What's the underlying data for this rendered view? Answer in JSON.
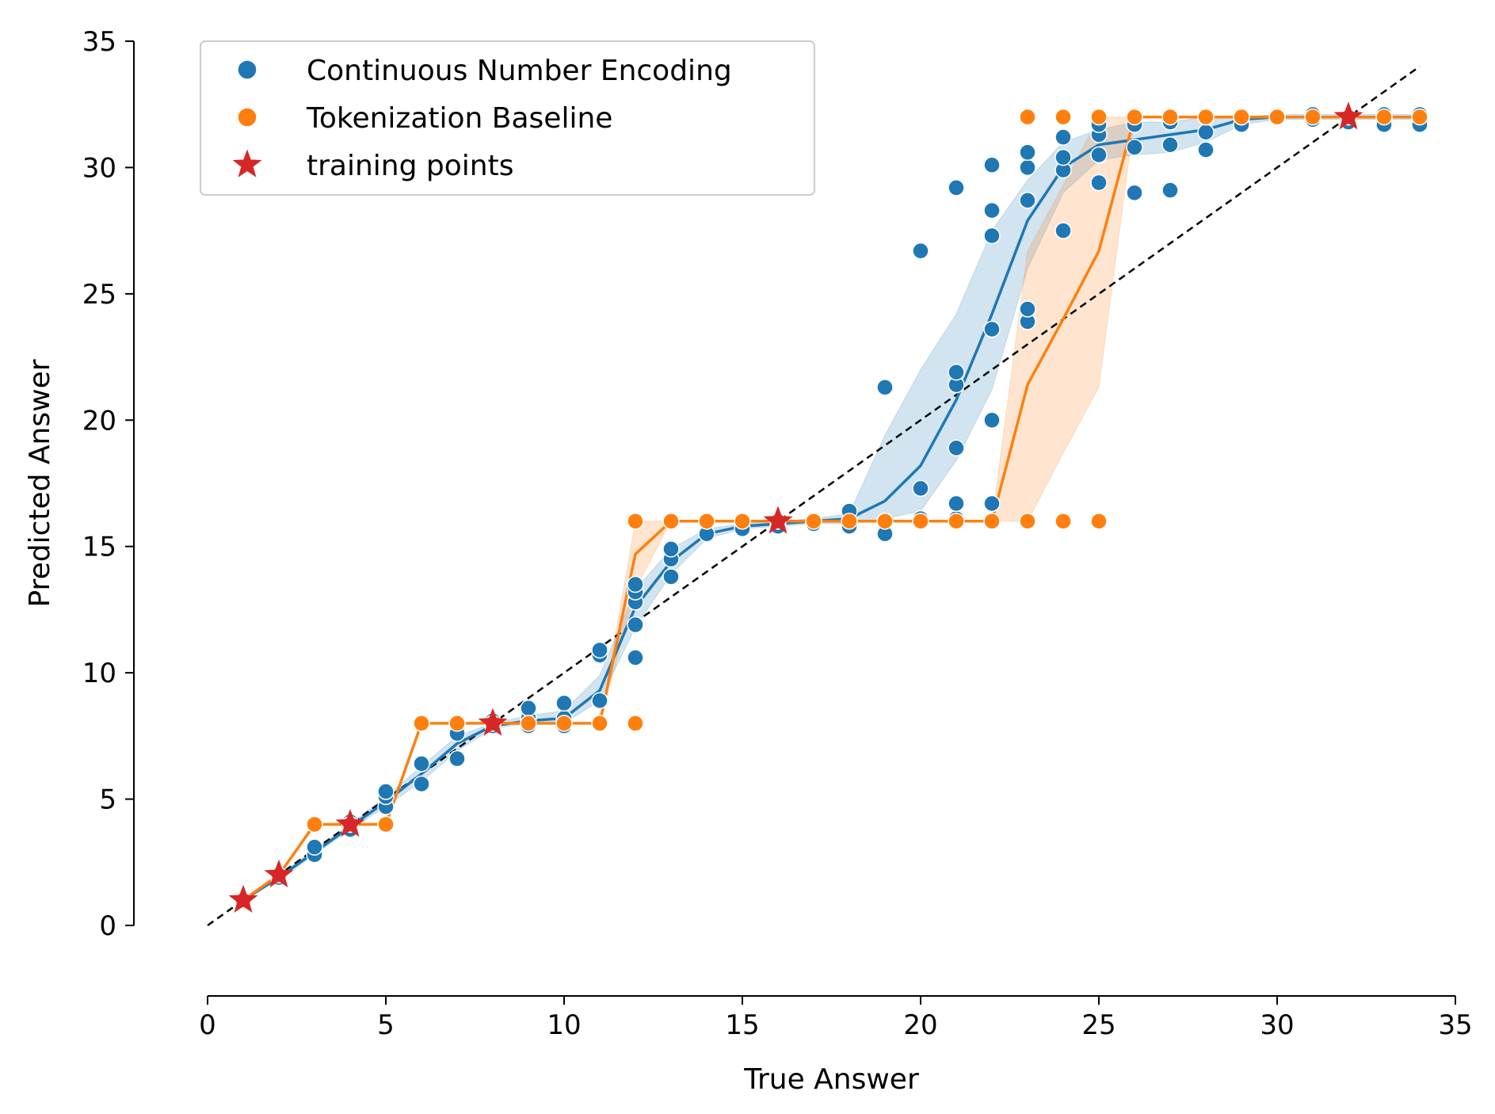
{
  "chart_data": {
    "type": "scatter",
    "title": "",
    "xlabel": "True Answer",
    "ylabel": "Predicted Answer",
    "xlim": [
      0,
      35
    ],
    "ylim": [
      0,
      35
    ],
    "xticks": [
      0,
      5,
      10,
      15,
      20,
      25,
      30,
      35
    ],
    "yticks": [
      0,
      5,
      10,
      15,
      20,
      25,
      30,
      35
    ],
    "grid": false,
    "legend_position": "top-left",
    "reference_line": {
      "style": "dashed",
      "color": "#000000",
      "x": [
        0,
        34
      ],
      "y": [
        0,
        34
      ]
    },
    "series": [
      {
        "name": "Continuous Number Encoding",
        "color": "#1f77b4",
        "points": [
          [
            1,
            1.0
          ],
          [
            2,
            1.9
          ],
          [
            3,
            2.8
          ],
          [
            3,
            3.1
          ],
          [
            4,
            3.8
          ],
          [
            4,
            4.1
          ],
          [
            5,
            4.7
          ],
          [
            5,
            5.1
          ],
          [
            5,
            5.3
          ],
          [
            6,
            5.6
          ],
          [
            6,
            6.4
          ],
          [
            7,
            6.6
          ],
          [
            7,
            7.6
          ],
          [
            8,
            7.9
          ],
          [
            8,
            8.1
          ],
          [
            9,
            7.9
          ],
          [
            9,
            8.2
          ],
          [
            9,
            8.6
          ],
          [
            10,
            7.9
          ],
          [
            10,
            8.2
          ],
          [
            10,
            8.8
          ],
          [
            11,
            8.9
          ],
          [
            11,
            10.7
          ],
          [
            11,
            10.9
          ],
          [
            12,
            10.6
          ],
          [
            12,
            11.9
          ],
          [
            12,
            12.8
          ],
          [
            12,
            13.2
          ],
          [
            12,
            13.5
          ],
          [
            13,
            13.8
          ],
          [
            13,
            14.5
          ],
          [
            13,
            14.9
          ],
          [
            14,
            15.5
          ],
          [
            15,
            15.7
          ],
          [
            16,
            15.8
          ],
          [
            17,
            15.9
          ],
          [
            18,
            15.8
          ],
          [
            18,
            16.4
          ],
          [
            19,
            15.5
          ],
          [
            19,
            21.3
          ],
          [
            20,
            16.1
          ],
          [
            20,
            17.3
          ],
          [
            20,
            26.7
          ],
          [
            21,
            16.1
          ],
          [
            21,
            16.7
          ],
          [
            21,
            18.9
          ],
          [
            21,
            21.4
          ],
          [
            21,
            21.9
          ],
          [
            21,
            29.2
          ],
          [
            22,
            16.7
          ],
          [
            22,
            20.0
          ],
          [
            22,
            23.6
          ],
          [
            22,
            27.3
          ],
          [
            22,
            28.3
          ],
          [
            22,
            30.1
          ],
          [
            23,
            23.9
          ],
          [
            23,
            24.4
          ],
          [
            23,
            28.7
          ],
          [
            23,
            30.0
          ],
          [
            23,
            30.6
          ],
          [
            24,
            27.5
          ],
          [
            24,
            29.9
          ],
          [
            24,
            30.4
          ],
          [
            24,
            31.2
          ],
          [
            25,
            29.4
          ],
          [
            25,
            30.5
          ],
          [
            25,
            31.3
          ],
          [
            25,
            31.7
          ],
          [
            26,
            29.0
          ],
          [
            26,
            30.8
          ],
          [
            26,
            31.7
          ],
          [
            27,
            29.1
          ],
          [
            27,
            30.9
          ],
          [
            27,
            31.8
          ],
          [
            28,
            30.7
          ],
          [
            28,
            31.4
          ],
          [
            28,
            32.0
          ],
          [
            29,
            31.7
          ],
          [
            29,
            32.0
          ],
          [
            30,
            32.0
          ],
          [
            31,
            31.9
          ],
          [
            31,
            32.1
          ],
          [
            32,
            31.8
          ],
          [
            32,
            32.0
          ],
          [
            33,
            31.7
          ],
          [
            33,
            32.1
          ],
          [
            34,
            31.7
          ],
          [
            34,
            32.1
          ]
        ],
        "mean_line": {
          "x": [
            1,
            2,
            3,
            4,
            5,
            6,
            7,
            8,
            9,
            10,
            11,
            12,
            13,
            14,
            15,
            16,
            17,
            18,
            19,
            20,
            21,
            22,
            23,
            24,
            25,
            26,
            27,
            28,
            29,
            30,
            31,
            32,
            33,
            34
          ],
          "y": [
            1.0,
            1.9,
            2.9,
            3.9,
            4.9,
            6.0,
            7.2,
            7.9,
            8.1,
            8.2,
            9.3,
            12.6,
            14.4,
            15.5,
            15.8,
            15.9,
            16.0,
            16.1,
            16.8,
            18.2,
            20.8,
            24.2,
            27.9,
            30.0,
            30.9,
            31.1,
            31.3,
            31.5,
            31.9,
            32.0,
            32.0,
            32.0,
            32.0,
            32.0
          ],
          "ci_lower": [
            1.0,
            1.8,
            2.8,
            3.8,
            4.7,
            5.7,
            6.9,
            7.8,
            8.0,
            8.0,
            8.9,
            11.8,
            13.9,
            15.3,
            15.7,
            15.8,
            15.9,
            15.9,
            16.1,
            16.4,
            18.4,
            21.2,
            26.0,
            29.0,
            30.3,
            30.5,
            30.6,
            31.0,
            31.7,
            31.9,
            31.9,
            31.9,
            31.9,
            31.9
          ],
          "ci_upper": [
            1.0,
            2.0,
            3.0,
            4.0,
            5.1,
            6.3,
            7.5,
            8.0,
            8.3,
            8.5,
            9.9,
            13.3,
            14.9,
            15.7,
            15.9,
            16.0,
            16.1,
            16.3,
            19.4,
            22.0,
            24.2,
            27.5,
            29.5,
            31.0,
            31.5,
            31.8,
            31.8,
            32.0,
            32.0,
            32.1,
            32.1,
            32.1,
            32.1,
            32.1
          ]
        }
      },
      {
        "name": "Tokenization Baseline",
        "color": "#ff7f0e",
        "points": [
          [
            1,
            1
          ],
          [
            2,
            2
          ],
          [
            3,
            4
          ],
          [
            4,
            4
          ],
          [
            5,
            4
          ],
          [
            6,
            8
          ],
          [
            7,
            8
          ],
          [
            8,
            8
          ],
          [
            9,
            8
          ],
          [
            10,
            8
          ],
          [
            11,
            8
          ],
          [
            12,
            8
          ],
          [
            12,
            16
          ],
          [
            13,
            16
          ],
          [
            14,
            16
          ],
          [
            15,
            16
          ],
          [
            16,
            16
          ],
          [
            17,
            16
          ],
          [
            18,
            16
          ],
          [
            19,
            16
          ],
          [
            20,
            16
          ],
          [
            21,
            16
          ],
          [
            22,
            16
          ],
          [
            23,
            16
          ],
          [
            24,
            16
          ],
          [
            25,
            16
          ],
          [
            23,
            32
          ],
          [
            24,
            32
          ],
          [
            25,
            32
          ],
          [
            26,
            32
          ],
          [
            27,
            32
          ],
          [
            28,
            32
          ],
          [
            29,
            32
          ],
          [
            30,
            32
          ],
          [
            31,
            32
          ],
          [
            32,
            32
          ],
          [
            33,
            32
          ],
          [
            34,
            32
          ]
        ],
        "mean_line": {
          "x": [
            1,
            2,
            3,
            4,
            5,
            6,
            7,
            8,
            9,
            10,
            11,
            12,
            13,
            14,
            15,
            16,
            17,
            18,
            19,
            20,
            21,
            22,
            23,
            24,
            25,
            26,
            27,
            28,
            29,
            30,
            31,
            32,
            33,
            34
          ],
          "y": [
            1,
            2,
            4,
            4,
            4,
            8,
            8,
            8,
            8,
            8,
            8,
            14.7,
            16,
            16,
            16,
            16,
            16,
            16,
            16,
            16,
            16,
            16,
            21.4,
            24.0,
            26.7,
            32,
            32,
            32,
            32,
            32,
            32,
            32,
            32,
            32
          ],
          "ci_lower": [
            1,
            2,
            4,
            4,
            4,
            8,
            8,
            8,
            8,
            8,
            8,
            13.3,
            16,
            16,
            16,
            16,
            16,
            16,
            16,
            16,
            16,
            16,
            16.0,
            18.7,
            21.3,
            32,
            32,
            32,
            32,
            32,
            32,
            32,
            32,
            32
          ],
          "ci_upper": [
            1,
            2,
            4,
            4,
            4,
            8,
            8,
            8,
            8,
            8,
            8,
            16.0,
            16,
            16,
            16,
            16,
            16,
            16,
            16,
            16,
            16,
            16,
            26.7,
            29.3,
            32.0,
            32,
            32,
            32,
            32,
            32,
            32,
            32,
            32,
            32
          ]
        }
      },
      {
        "name": "training points",
        "color": "#d62728",
        "marker": "star",
        "points": [
          [
            1,
            1
          ],
          [
            2,
            2
          ],
          [
            4,
            4
          ],
          [
            8,
            8
          ],
          [
            16,
            16
          ],
          [
            32,
            32
          ]
        ]
      }
    ]
  }
}
